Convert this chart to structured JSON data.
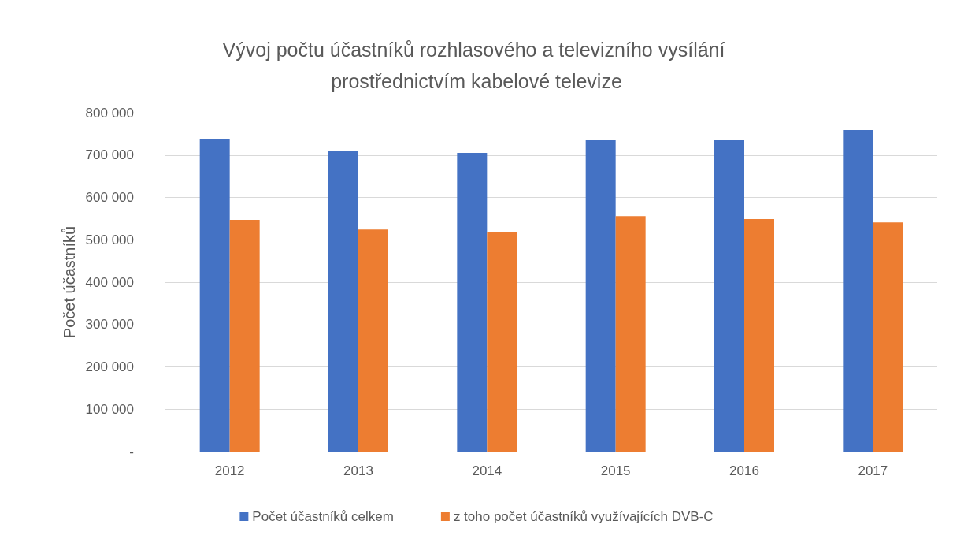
{
  "chart_data": {
    "type": "bar",
    "title": "Vývoj počtu účastníků rozhlasového a televizního vysílání prostřednictvím kabelové televize",
    "ylabel": "Počet účastníků",
    "categories": [
      "2012",
      "2013",
      "2014",
      "2015",
      "2016",
      "2017"
    ],
    "series": [
      {
        "name": "Počet účastníků celkem",
        "color": "#4472c4",
        "values": [
          738000,
          709000,
          705000,
          735000,
          735000,
          759000
        ]
      },
      {
        "name": "z toho počet účastníků využívajících DVB-C",
        "color": "#ed7d31",
        "values": [
          547000,
          524000,
          517000,
          556000,
          549000,
          541000
        ]
      }
    ],
    "ylim": [
      0,
      800000
    ],
    "yticks": [
      {
        "value": 0,
        "label": "-"
      },
      {
        "value": 100000,
        "label": "100 000"
      },
      {
        "value": 200000,
        "label": "200 000"
      },
      {
        "value": 300000,
        "label": "300 000"
      },
      {
        "value": 400000,
        "label": "400 000"
      },
      {
        "value": 500000,
        "label": "500 000"
      },
      {
        "value": 600000,
        "label": "600 000"
      },
      {
        "value": 700000,
        "label": "700 000"
      },
      {
        "value": 800000,
        "label": "800 000"
      }
    ],
    "grid": "y",
    "legend": "bottom"
  }
}
